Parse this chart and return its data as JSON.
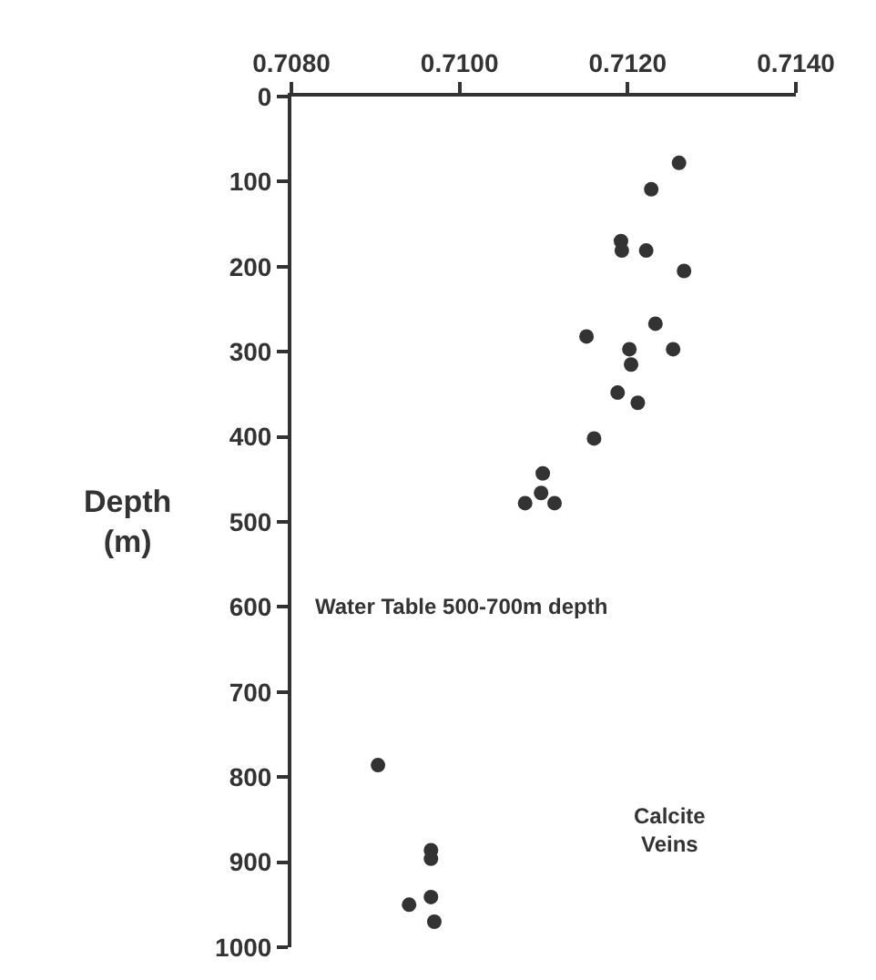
{
  "chart_data": {
    "type": "scatter",
    "ylabel": "Depth\n(m)",
    "x": [
      0.71261,
      0.71228,
      0.71192,
      0.71193,
      0.71222,
      0.71267,
      0.71233,
      0.71151,
      0.71202,
      0.71254,
      0.71204,
      0.71188,
      0.71212,
      0.7116,
      0.71099,
      0.71097,
      0.71078,
      0.71113,
      0.70903,
      0.70966,
      0.70966,
      0.70966,
      0.7094,
      0.7097
    ],
    "values": [
      78,
      109,
      170,
      181,
      181,
      205,
      267,
      282,
      297,
      297,
      315,
      348,
      360,
      402,
      443,
      466,
      478,
      478,
      786,
      886,
      896,
      941,
      950,
      970
    ],
    "color": "#333333",
    "marker": "circle",
    "xlim": [
      0.708,
      0.714
    ],
    "xticks": [
      {
        "value": 0.708,
        "label": "0.7080"
      },
      {
        "value": 0.71,
        "label": "0.7100"
      },
      {
        "value": 0.712,
        "label": "0.7120"
      },
      {
        "value": 0.714,
        "label": "0.7140"
      }
    ],
    "ylim": [
      1000,
      0
    ],
    "yticks": [
      0,
      100,
      200,
      300,
      400,
      500,
      600,
      700,
      800,
      900,
      1000
    ],
    "grid": false,
    "legend": false,
    "annotations": [
      "Water Table 500-700m depth",
      "Calcite\nVeins"
    ]
  }
}
